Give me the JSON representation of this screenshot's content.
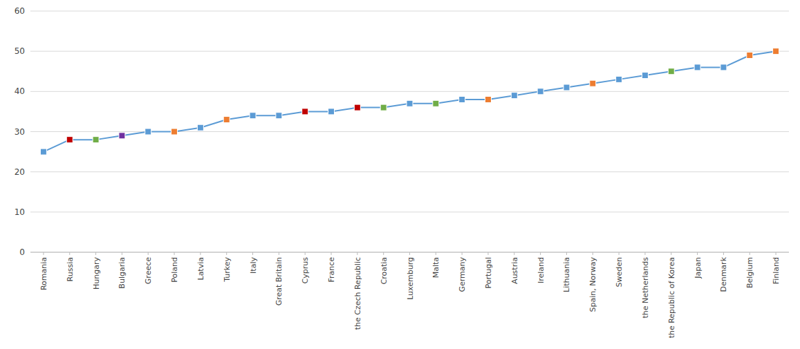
{
  "chart_data": {
    "type": "line",
    "categories": [
      "Romania",
      "Russia",
      "Hungary",
      "Bulgaria",
      "Greece",
      "Poland",
      "Latvia",
      "Turkey",
      "Italy",
      "Great Britain",
      "Cyprus",
      "France",
      "the Czech Republic",
      "Croatia",
      "Luxemburg",
      "Malta",
      "Germany",
      "Portugal",
      "Austria",
      "Ireland",
      "Lithuania",
      "Spain, Norway",
      "Sweden",
      "the Netherlands",
      "the Republic of Korea",
      "Japan",
      "Denmark",
      "Belgium",
      "Finland"
    ],
    "values": [
      25,
      28,
      28,
      29,
      30,
      30,
      31,
      33,
      34,
      34,
      35,
      35,
      36,
      36,
      37,
      37,
      38,
      38,
      39,
      40,
      41,
      42,
      43,
      44,
      45,
      46,
      46,
      49,
      50
    ],
    "color": "#5B9BD5",
    "colors": [
      "#5B9BD5",
      "#C00000",
      "#70AD47",
      "#7030A0",
      "#5B9BD5",
      "#ED7D31",
      "#5B9BD5",
      "#ED7D31",
      "#5B9BD5",
      "#5B9BD5",
      "#C00000",
      "#5B9BD5",
      "#C00000",
      "#70AD47",
      "#5B9BD5",
      "#70AD47",
      "#5B9BD5",
      "#ED7D31",
      "#5B9BD5",
      "#5B9BD5",
      "#5B9BD5",
      "#ED7D31",
      "#5B9BD5",
      "#5B9BD5",
      "#70AD47",
      "#5B9BD5",
      "#5B9BD5",
      "#ED7D31",
      "#ED7D31"
    ],
    "marker": "square",
    "ylim": [
      0,
      60
    ],
    "yticks": [
      0,
      10,
      20,
      30,
      40,
      50,
      60
    ],
    "grid": true
  }
}
